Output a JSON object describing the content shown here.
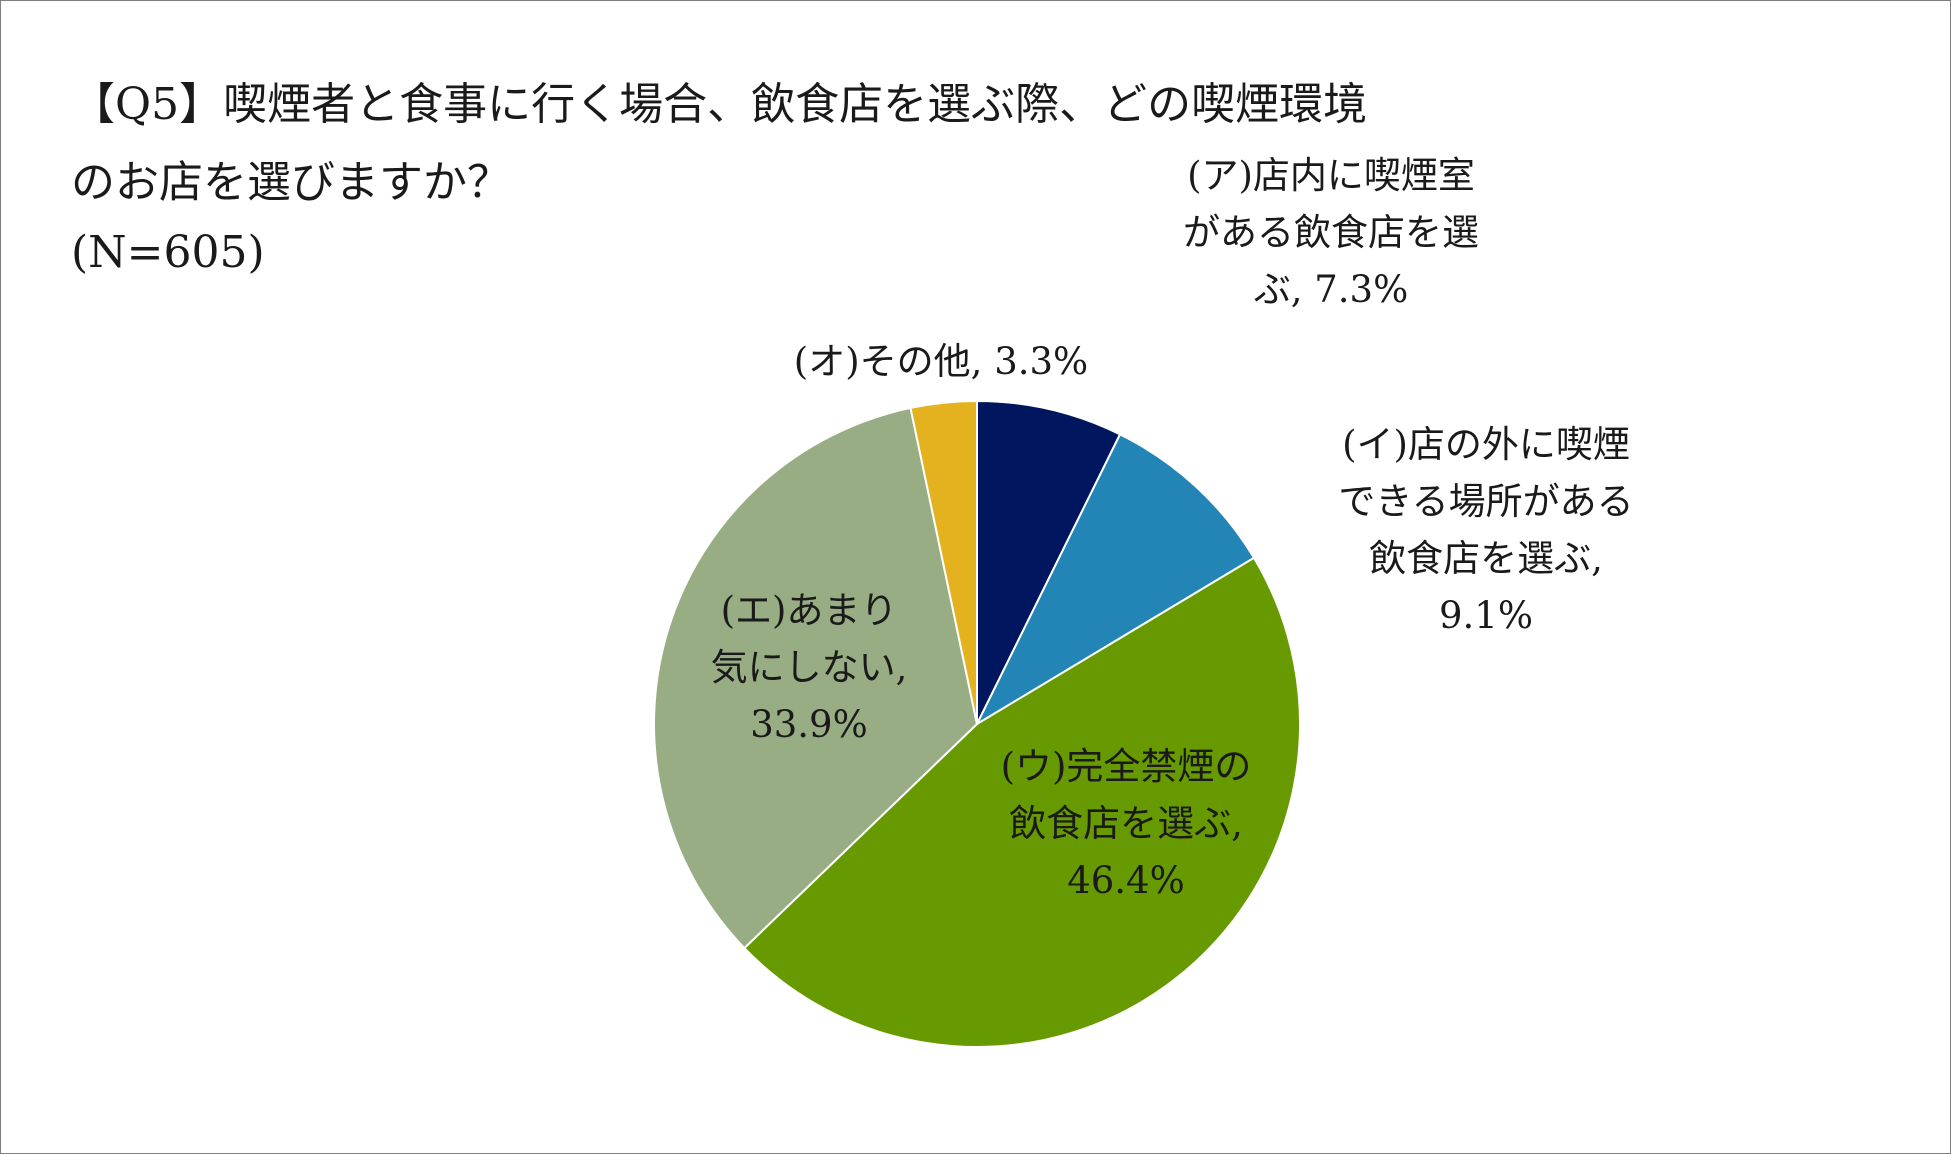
{
  "chart_data": {
    "type": "pie",
    "title_lines": [
      "【Q5】喫煙者と食事に行く場合、飲食店を選ぶ際、どの喫煙環境",
      "のお店を選びますか？",
      "(N=605)"
    ],
    "start_angle_deg": 0,
    "direction": "clockwise",
    "slices": [
      {
        "label_lines": [
          "(ア)店内に喫煙室",
          "がある飲食店を選",
          "ぶ, 7.3%"
        ],
        "value": 7.3,
        "color": "#00175f"
      },
      {
        "label_lines": [
          "(イ)店の外に喫煙",
          "できる場所がある",
          "飲食店を選ぶ,",
          "9.1%"
        ],
        "value": 9.1,
        "color": "#2285b6"
      },
      {
        "label_lines": [
          "(ウ)完全禁煙の",
          "飲食店を選ぶ,",
          "46.4%"
        ],
        "value": 46.4,
        "color": "#679a00"
      },
      {
        "label_lines": [
          "(エ)あまり",
          "気にしない,",
          "33.9%"
        ],
        "value": 33.9,
        "color": "#98ad84"
      },
      {
        "label_lines": [
          "(オ)その他, 3.3%"
        ],
        "value": 3.3,
        "color": "#e5b21f"
      }
    ]
  }
}
